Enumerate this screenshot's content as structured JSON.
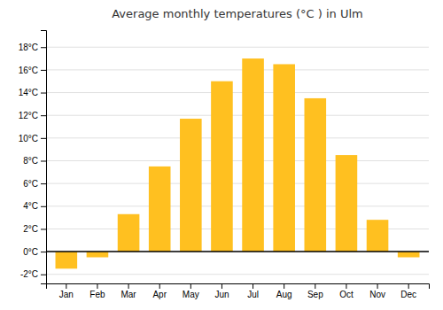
{
  "chart_data": {
    "type": "bar",
    "title": "Average monthly temperatures (°C ) in Ulm",
    "categories": [
      "Jan",
      "Feb",
      "Mar",
      "Apr",
      "May",
      "Jun",
      "Jul",
      "Aug",
      "Sep",
      "Oct",
      "Nov",
      "Dec"
    ],
    "values": [
      -1.5,
      -0.5,
      3.3,
      7.5,
      11.7,
      15.0,
      17.0,
      16.5,
      13.5,
      8.5,
      2.8,
      -0.5
    ],
    "color": "#FFC020",
    "ylim": [
      -2.8,
      19.5
    ],
    "yticks": [
      {
        "value": -2,
        "label": "-2°C"
      },
      {
        "value": 0,
        "label": "0°C"
      },
      {
        "value": 2,
        "label": "2°C"
      },
      {
        "value": 4,
        "label": "4°C"
      },
      {
        "value": 6,
        "label": "6°C"
      },
      {
        "value": 8,
        "label": "8°C"
      },
      {
        "value": 10,
        "label": "10°C"
      },
      {
        "value": 12,
        "label": "12°C"
      },
      {
        "value": 14,
        "label": "14°C"
      },
      {
        "value": 16,
        "label": "16°C"
      },
      {
        "value": 18,
        "label": "18°C"
      }
    ],
    "grid": true
  }
}
